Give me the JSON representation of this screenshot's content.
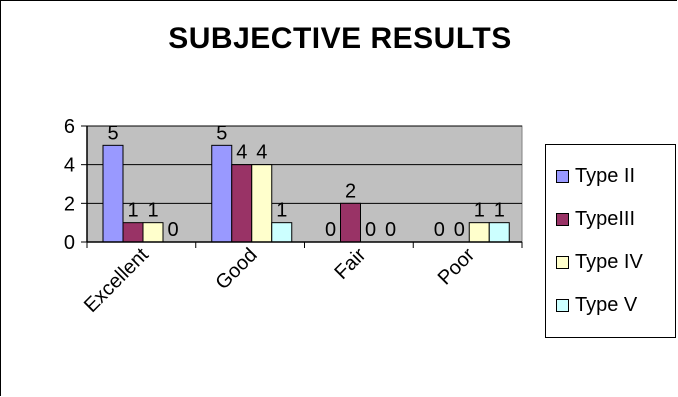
{
  "chart_data": {
    "type": "bar",
    "title": "SUBJECTIVE RESULTS",
    "categories": [
      "Excellent",
      "Good",
      "Fair",
      "Poor"
    ],
    "series": [
      {
        "name": "Type II",
        "values": [
          5,
          5,
          0,
          0
        ],
        "color": "#9999ff"
      },
      {
        "name": "TypeIII",
        "values": [
          1,
          4,
          2,
          0
        ],
        "color": "#993366"
      },
      {
        "name": "Type IV",
        "values": [
          1,
          4,
          0,
          1
        ],
        "color": "#ffffcc"
      },
      {
        "name": "Type V",
        "values": [
          0,
          1,
          0,
          1
        ],
        "color": "#ccffff"
      }
    ],
    "ylim": [
      0,
      6
    ],
    "yticks": [
      0,
      2,
      4,
      6
    ],
    "xlabel": "",
    "ylabel": "",
    "grid": true,
    "plot_background": "#c0c0c0",
    "legend": "right"
  }
}
